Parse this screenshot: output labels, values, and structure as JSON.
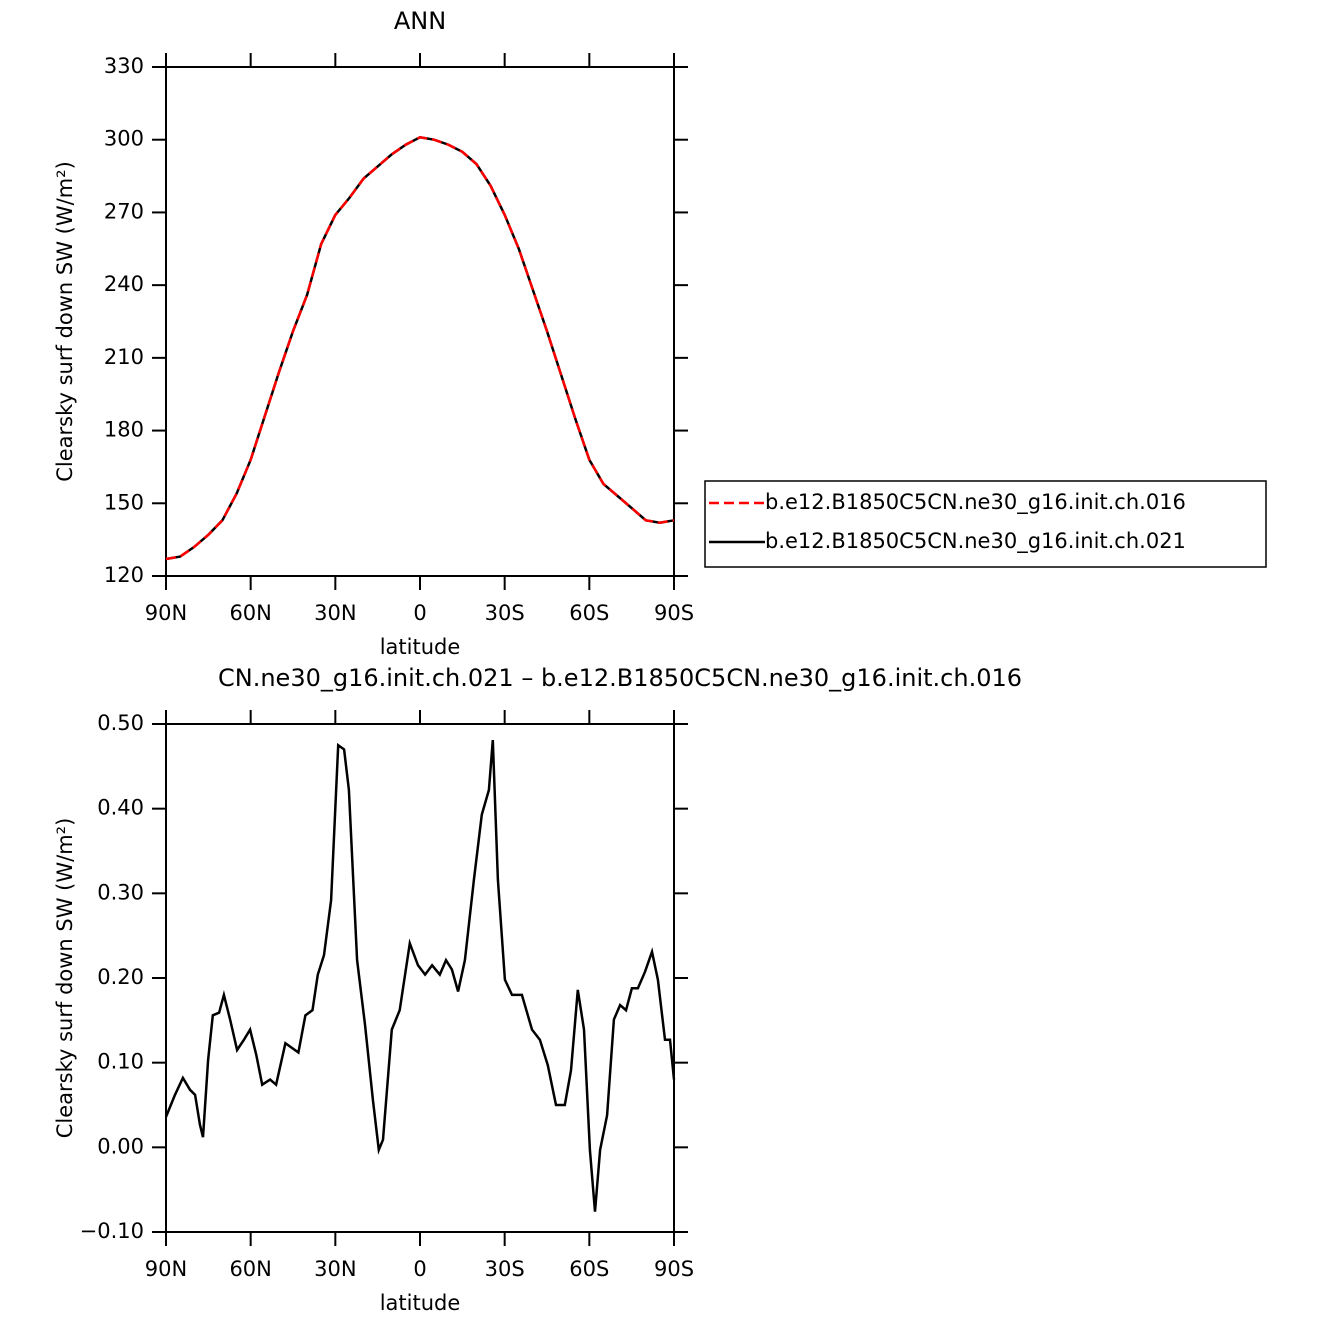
{
  "chart_data": [
    {
      "type": "line",
      "title": "ANN",
      "xlabel": "latitude",
      "ylabel": "Clearsky surf down SW (W/m²)",
      "x": [
        90,
        85,
        80,
        75,
        70,
        65,
        60,
        55,
        50,
        45,
        40,
        35,
        30,
        25,
        20,
        15,
        10,
        5,
        0,
        -5,
        -10,
        -15,
        -20,
        -25,
        -30,
        -35,
        -40,
        -45,
        -50,
        -55,
        -60,
        -65,
        -70,
        -75,
        -80,
        -85,
        -90
      ],
      "series": [
        {
          "name": "b.e12.B1850C5CN.ne30_g16.init.ch.021",
          "color": "#000000",
          "dash": false,
          "values": [
            127,
            128,
            132,
            137,
            143,
            154,
            168,
            186,
            204,
            221,
            236,
            257,
            269,
            276,
            284,
            289,
            294,
            298,
            301,
            300,
            298,
            295,
            290,
            281,
            269,
            255,
            238,
            221,
            203,
            185,
            168,
            158,
            153,
            148,
            143,
            142,
            143
          ]
        },
        {
          "name": "b.e12.B1850C5CN.ne30_g16.init.ch.016",
          "color": "#ff0000",
          "dash": true,
          "values": [
            127,
            128,
            132,
            137,
            143,
            154,
            168,
            186,
            204,
            221,
            236,
            257,
            269,
            276,
            284,
            289,
            294,
            298,
            301,
            300,
            298,
            295,
            290,
            281,
            269,
            255,
            238,
            221,
            203,
            185,
            168,
            158,
            153,
            148,
            143,
            142,
            143
          ]
        }
      ],
      "xlim": [
        90,
        -90
      ],
      "xticks": [
        {
          "value": 90,
          "label": "90N"
        },
        {
          "value": 60,
          "label": "60N"
        },
        {
          "value": 30,
          "label": "30N"
        },
        0,
        {
          "value": -30,
          "label": "30S"
        },
        {
          "value": -60,
          "label": "60S"
        },
        {
          "value": -90,
          "label": "90S"
        }
      ],
      "ylim": [
        120,
        330
      ],
      "yticks": [
        120,
        150,
        180,
        210,
        240,
        270,
        300,
        330
      ],
      "legend": "right"
    },
    {
      "type": "line",
      "title": "CN.ne30_g16.init.ch.021 – b.e12.B1850C5CN.ne30_g16.init.ch.016",
      "xlabel": "latitude",
      "ylabel": "Clearsky surf down SW (W/m²)",
      "x": [
        90,
        86.8,
        84,
        81.5,
        79.7,
        78,
        76.9,
        75.1,
        73.4,
        71.2,
        69.5,
        67.3,
        64.8,
        62.4,
        60.2,
        58,
        55.9,
        53.1,
        51,
        47.7,
        43.1,
        40.6,
        38.1,
        36.2,
        34,
        31.5,
        29,
        26.9,
        25.2,
        22.3,
        19.5,
        16.7,
        14.6,
        13.1,
        10,
        7.2,
        3.6,
        0.7,
        -1.8,
        -4.3,
        -7,
        -9.2,
        -11.3,
        -13.5,
        -15.9,
        -19.1,
        -21.9,
        -24.4,
        -25.8,
        -27.6,
        -30.1,
        -32.6,
        -36.1,
        -39.7,
        -42.5,
        -45.3,
        -48.2,
        -51.3,
        -53.5,
        -55.9,
        -58.1,
        -60.2,
        -62,
        -63.8,
        -66.3,
        -68.7,
        -70.9,
        -73,
        -75.1,
        -77.2,
        -79.7,
        -82.2,
        -84.3,
        -86.8,
        -88.6,
        -90
      ],
      "series": [
        {
          "color": "#000000",
          "dash": false,
          "values": [
            0.036,
            0.062,
            0.082,
            0.068,
            0.062,
            0.027,
            0.012,
            0.103,
            0.156,
            0.159,
            0.18,
            0.151,
            0.115,
            0.127,
            0.139,
            0.109,
            0.074,
            0.08,
            0.074,
            0.123,
            0.112,
            0.156,
            0.162,
            0.204,
            0.227,
            0.292,
            0.475,
            0.47,
            0.422,
            0.221,
            0.145,
            0.056,
            -0.003,
            0.009,
            0.139,
            0.162,
            0.241,
            0.215,
            0.204,
            0.215,
            0.204,
            0.221,
            0.21,
            0.184,
            0.221,
            0.316,
            0.393,
            0.422,
            0.481,
            0.316,
            0.198,
            0.18,
            0.18,
            0.139,
            0.127,
            0.097,
            0.05,
            0.05,
            0.091,
            0.186,
            0.139,
            -0.003,
            -0.076,
            -0.003,
            0.038,
            0.151,
            0.168,
            0.162,
            0.188,
            0.188,
            0.207,
            0.231,
            0.198,
            0.127,
            0.127,
            0.08
          ]
        }
      ],
      "xlim": [
        90,
        -90
      ],
      "xticks": [
        {
          "value": 90,
          "label": "90N"
        },
        {
          "value": 60,
          "label": "60N"
        },
        {
          "value": 30,
          "label": "30N"
        },
        0,
        {
          "value": -30,
          "label": "30S"
        },
        {
          "value": -60,
          "label": "60S"
        },
        {
          "value": -90,
          "label": "90S"
        }
      ],
      "ylim": [
        -0.1,
        0.5
      ],
      "yticks": [
        {
          "value": -0.1,
          "label": "−0.10"
        },
        {
          "value": 0,
          "label": "0.00"
        },
        {
          "value": 0.1,
          "label": "0.10"
        },
        {
          "value": 0.2,
          "label": "0.20"
        },
        {
          "value": 0.3,
          "label": "0.30"
        },
        {
          "value": 0.4,
          "label": "0.40"
        },
        {
          "value": 0.5,
          "label": "0.50"
        }
      ]
    }
  ]
}
